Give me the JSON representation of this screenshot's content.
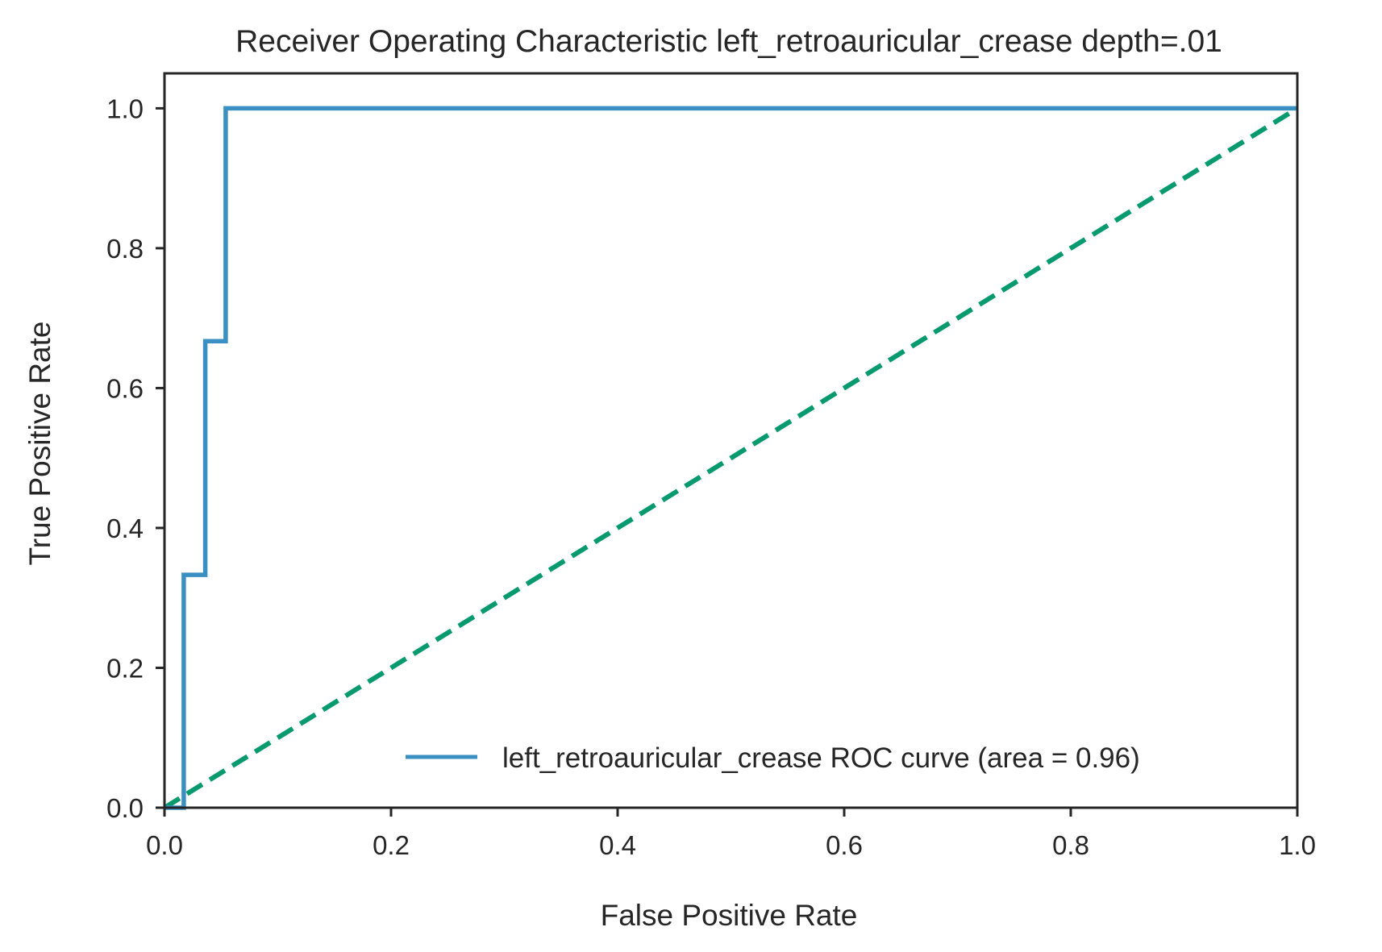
{
  "chart_data": {
    "type": "line",
    "title": "Receiver Operating Characteristic left_retroauricular_crease depth=.01",
    "xlabel": "False Positive Rate",
    "ylabel": "True Positive Rate",
    "xlim": [
      0.0,
      1.0
    ],
    "ylim": [
      0.0,
      1.05
    ],
    "xticks": [
      "0.0",
      "0.2",
      "0.4",
      "0.6",
      "0.8",
      "1.0"
    ],
    "yticks": [
      "0.0",
      "0.2",
      "0.4",
      "0.6",
      "0.8",
      "1.0"
    ],
    "grid": false,
    "legend_position": "lower-right",
    "series": [
      {
        "name": "left_retroauricular_crease ROC curve (area = 0.96)",
        "color": "#3a8fc3",
        "style": "solid",
        "x": [
          0.0,
          0.017,
          0.017,
          0.036,
          0.036,
          0.054,
          0.054,
          1.0
        ],
        "y": [
          0.0,
          0.0,
          0.333,
          0.333,
          0.667,
          0.667,
          1.0,
          1.0
        ]
      },
      {
        "color": "#069a6e",
        "style": "dashed",
        "x": [
          0.0,
          1.0
        ],
        "y": [
          0.0,
          1.0
        ]
      }
    ]
  }
}
